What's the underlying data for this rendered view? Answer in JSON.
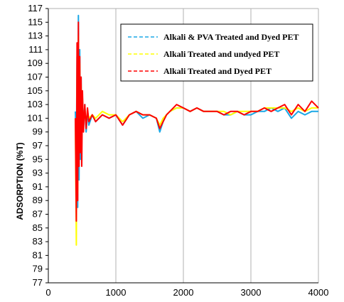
{
  "chart_data": {
    "type": "line",
    "title": "",
    "xlabel": "",
    "ylabel": "ADSORPTION (%T)",
    "xlim": [
      0,
      4000
    ],
    "ylim": [
      77,
      117
    ],
    "x_ticks": [
      0,
      1000,
      2000,
      3000,
      4000
    ],
    "y_ticks": [
      77,
      79,
      81,
      83,
      85,
      87,
      89,
      91,
      93,
      95,
      97,
      99,
      101,
      103,
      105,
      107,
      109,
      111,
      113,
      115,
      117
    ],
    "grid": "vertical",
    "legend": "top-right",
    "series": [
      {
        "name": "Alkali & PVA Treated and Dyed PET",
        "color": "#1aa7e6",
        "x": [
          400,
          415,
          425,
          435,
          445,
          455,
          465,
          475,
          485,
          495,
          505,
          520,
          540,
          560,
          580,
          600,
          650,
          700,
          800,
          900,
          1000,
          1100,
          1200,
          1300,
          1400,
          1500,
          1600,
          1650,
          1700,
          1750,
          1800,
          1900,
          2000,
          2100,
          2200,
          2300,
          2400,
          2500,
          2600,
          2700,
          2800,
          2900,
          3000,
          3100,
          3200,
          3300,
          3400,
          3500,
          3600,
          3700,
          3800,
          3900,
          4000
        ],
        "y": [
          102,
          96,
          110,
          88,
          116,
          92,
          111,
          95,
          107,
          98,
          104,
          100,
          103,
          99,
          102,
          100,
          101.5,
          100.5,
          101.5,
          101,
          101.5,
          100,
          101.5,
          102,
          101,
          101.5,
          101,
          99,
          100.5,
          101.5,
          102,
          102.5,
          102.5,
          102,
          102.5,
          102,
          102,
          102,
          101.5,
          101.5,
          102,
          101.5,
          101.5,
          102,
          102,
          102.5,
          102,
          102.5,
          101,
          102,
          101.5,
          102,
          102
        ]
      },
      {
        "name": "Alkali Treated and undyed PET",
        "color": "#ffff00",
        "x": [
          400,
          415,
          425,
          435,
          445,
          455,
          465,
          475,
          485,
          495,
          505,
          520,
          540,
          560,
          580,
          600,
          650,
          700,
          800,
          900,
          1000,
          1100,
          1200,
          1300,
          1400,
          1500,
          1600,
          1650,
          1700,
          1750,
          1800,
          1900,
          2000,
          2100,
          2200,
          2300,
          2400,
          2500,
          2600,
          2700,
          2800,
          2900,
          3000,
          3100,
          3200,
          3300,
          3400,
          3500,
          3600,
          3700,
          3800,
          3900,
          4000
        ],
        "y": [
          101,
          82.5,
          108,
          90,
          113,
          96,
          109,
          97,
          106,
          99,
          104,
          100,
          102.5,
          100,
          102,
          101,
          101.5,
          101,
          102,
          101.5,
          101.5,
          100.5,
          101.5,
          102,
          101.5,
          101.5,
          101,
          100,
          101,
          101.5,
          102,
          102.5,
          102.5,
          102,
          102.5,
          102,
          102,
          102,
          102,
          101.5,
          102,
          102,
          102,
          102,
          102.5,
          102.5,
          102.5,
          102.5,
          102,
          102.5,
          102,
          102.5,
          102.5
        ]
      },
      {
        "name": "Alkali Treated and Dyed PET",
        "color": "#ff0000",
        "x": [
          400,
          415,
          425,
          435,
          445,
          455,
          465,
          475,
          485,
          495,
          505,
          520,
          540,
          560,
          580,
          600,
          650,
          700,
          800,
          900,
          1000,
          1100,
          1200,
          1300,
          1400,
          1500,
          1600,
          1650,
          1700,
          1750,
          1800,
          1900,
          2000,
          2100,
          2200,
          2300,
          2400,
          2500,
          2600,
          2700,
          2800,
          2900,
          3000,
          3100,
          3200,
          3300,
          3400,
          3500,
          3600,
          3700,
          3800,
          3900,
          4000
        ],
        "y": [
          101,
          86,
          112,
          89,
          115,
          94,
          110,
          96,
          107,
          94,
          105,
          99,
          103,
          99.5,
          102.5,
          100.5,
          101.5,
          100.5,
          101.5,
          101,
          101.5,
          100,
          101.5,
          102,
          101.5,
          101.5,
          101,
          99.5,
          100.5,
          101.5,
          102,
          103,
          102.5,
          102,
          102.5,
          102,
          102,
          102,
          101.5,
          102,
          102,
          101.5,
          102,
          102,
          102.5,
          102,
          102.5,
          103,
          101.5,
          103,
          102,
          103.5,
          102.5
        ]
      }
    ]
  }
}
